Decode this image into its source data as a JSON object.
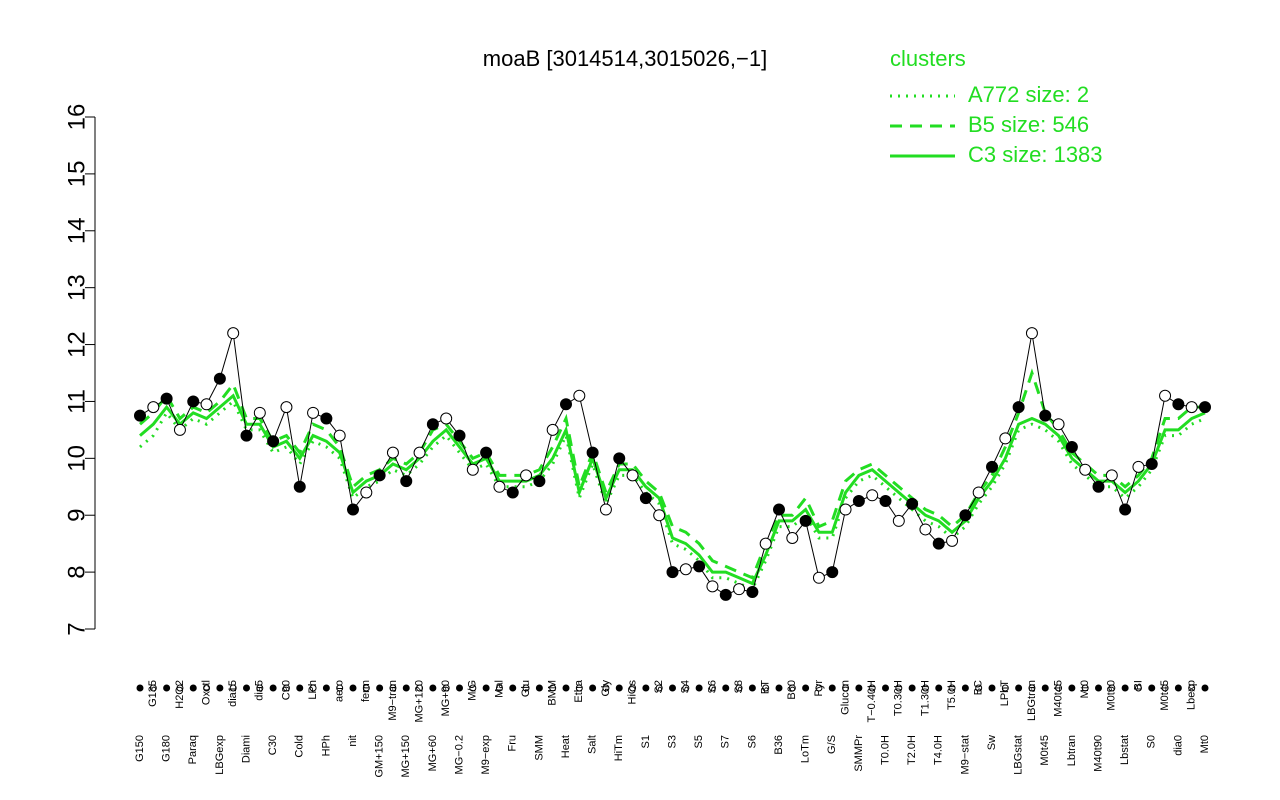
{
  "chart_data": {
    "type": "line",
    "title": "moaB [3014514,3015026,−1]",
    "legend_title": "clusters",
    "categories": [
      "G150",
      "G135",
      "G180",
      "H2O2",
      "Paraq",
      "Oxctl",
      "LBGexp",
      "dia15",
      "Diami",
      "dia5",
      "C30",
      "C90",
      "Cold",
      "LPh",
      "HPh",
      "aero",
      "nit",
      "ferm",
      "GM+150",
      "M9−tran",
      "MG+150",
      "MG+120",
      "MG+60",
      "MG+90",
      "MG−0.2",
      "M/G",
      "M9−exp",
      "Mal",
      "Fru",
      "Glu",
      "SMM",
      "BMM",
      "Heat",
      "Etha",
      "Salt",
      "Gly",
      "HiTm",
      "HiOs",
      "S1",
      "S2",
      "S3",
      "S4",
      "S5",
      "S6",
      "S7",
      "S8",
      "S6",
      "BT",
      "B36",
      "B60",
      "LoTm",
      "Pyr",
      "G/S",
      "Glucon",
      "SMMPr",
      "T−0.40H",
      "T0.0H",
      "T0.30H",
      "T2.0H",
      "T1.30H",
      "T4.0H",
      "T5.0H",
      "M9−stat",
      "BC",
      "Sw",
      "LPhT",
      "LBGstat",
      "LBGtran",
      "M0t45",
      "M40t45",
      "Lbtran",
      "Mt0",
      "M40t90",
      "M0t90",
      "Lbstat",
      "BI",
      "S0",
      "M0t45",
      "dia0",
      "Lbexp",
      "Mt0"
    ],
    "values": [
      10.75,
      10.9,
      11.05,
      10.5,
      11.0,
      10.95,
      11.4,
      12.2,
      10.4,
      10.8,
      10.3,
      10.9,
      9.5,
      10.8,
      10.7,
      10.4,
      9.1,
      9.4,
      9.7,
      10.1,
      9.6,
      10.1,
      10.6,
      10.7,
      10.4,
      9.8,
      10.1,
      9.5,
      9.4,
      9.7,
      9.6,
      10.5,
      10.95,
      11.1,
      10.1,
      9.1,
      10.0,
      9.7,
      9.3,
      9.0,
      8.0,
      8.05,
      8.1,
      7.75,
      7.6,
      7.7,
      7.65,
      8.5,
      9.1,
      8.6,
      8.9,
      7.9,
      8.0,
      9.1,
      9.25,
      9.35,
      9.25,
      8.9,
      9.2,
      8.75,
      8.5,
      8.55,
      9.0,
      9.4,
      9.85,
      10.35,
      10.9,
      12.2,
      10.75,
      10.6,
      10.2,
      9.8,
      9.5,
      9.7,
      9.1,
      9.85,
      9.9,
      11.1,
      10.95,
      10.9,
      10.9
    ],
    "color": "#000000",
    "series": [
      {
        "name": "A772 size: 2",
        "color": "#22dd22",
        "linestyle": "dotted",
        "values": [
          10.2,
          10.4,
          10.8,
          10.5,
          10.7,
          10.6,
          10.8,
          11.0,
          10.5,
          10.5,
          10.1,
          10.2,
          9.9,
          10.3,
          10.2,
          10.0,
          9.3,
          9.5,
          9.6,
          9.8,
          9.7,
          9.9,
          10.2,
          10.4,
          10.1,
          9.8,
          9.9,
          9.5,
          9.5,
          9.5,
          9.6,
          9.9,
          10.4,
          9.3,
          9.9,
          9.2,
          9.7,
          9.7,
          9.4,
          9.2,
          8.5,
          8.4,
          8.2,
          7.9,
          7.9,
          7.8,
          7.7,
          8.2,
          8.8,
          8.8,
          9.0,
          8.6,
          8.6,
          9.3,
          9.6,
          9.7,
          9.5,
          9.3,
          9.1,
          8.9,
          8.8,
          8.6,
          8.8,
          9.2,
          9.5,
          9.9,
          10.5,
          10.6,
          10.5,
          10.3,
          9.9,
          9.7,
          9.5,
          9.5,
          9.3,
          9.5,
          9.8,
          10.4,
          10.4,
          10.6,
          10.7
        ]
      },
      {
        "name": "B5 size: 546",
        "color": "#22dd22",
        "linestyle": "dashed",
        "values": [
          10.6,
          10.8,
          11.1,
          10.7,
          10.9,
          10.8,
          11.0,
          11.3,
          10.7,
          10.7,
          10.3,
          10.4,
          10.1,
          10.6,
          10.5,
          10.2,
          9.5,
          9.7,
          9.8,
          10.0,
          9.9,
          10.1,
          10.5,
          10.6,
          10.3,
          10.0,
          10.1,
          9.7,
          9.7,
          9.7,
          9.8,
          10.2,
          10.7,
          9.5,
          10.1,
          9.4,
          9.9,
          9.9,
          9.6,
          9.4,
          8.8,
          8.7,
          8.5,
          8.2,
          8.1,
          8.0,
          7.9,
          8.5,
          9.0,
          9.0,
          9.3,
          8.8,
          8.9,
          9.6,
          9.8,
          9.9,
          9.7,
          9.5,
          9.3,
          9.1,
          9.0,
          8.8,
          9.0,
          9.4,
          9.7,
          10.2,
          10.8,
          11.5,
          10.8,
          10.5,
          10.1,
          9.9,
          9.7,
          9.7,
          9.5,
          9.7,
          10.0,
          10.7,
          10.7,
          10.9,
          10.9
        ]
      },
      {
        "name": "C3 size: 1383",
        "color": "#22dd22",
        "linestyle": "solid",
        "values": [
          10.4,
          10.6,
          10.9,
          10.6,
          10.8,
          10.7,
          10.9,
          11.1,
          10.6,
          10.6,
          10.2,
          10.3,
          10.0,
          10.4,
          10.3,
          10.1,
          9.4,
          9.6,
          9.7,
          9.9,
          9.8,
          10.0,
          10.3,
          10.5,
          10.2,
          9.9,
          10.0,
          9.6,
          9.6,
          9.6,
          9.7,
          10.0,
          10.5,
          9.4,
          10.0,
          9.3,
          9.8,
          9.8,
          9.5,
          9.3,
          8.6,
          8.5,
          8.3,
          8.0,
          8.0,
          7.9,
          7.8,
          8.3,
          8.9,
          8.9,
          9.1,
          8.7,
          8.7,
          9.4,
          9.7,
          9.8,
          9.6,
          9.4,
          9.2,
          9.0,
          8.9,
          8.7,
          8.9,
          9.3,
          9.6,
          10.0,
          10.6,
          10.7,
          10.6,
          10.4,
          10.0,
          9.8,
          9.6,
          9.6,
          9.4,
          9.6,
          9.9,
          10.5,
          10.5,
          10.7,
          10.8
        ]
      }
    ],
    "ylim": [
      7,
      16
    ],
    "yticks": [
      7,
      8,
      9,
      10,
      11,
      12,
      13,
      14,
      15,
      16
    ],
    "legend": "top-right"
  }
}
